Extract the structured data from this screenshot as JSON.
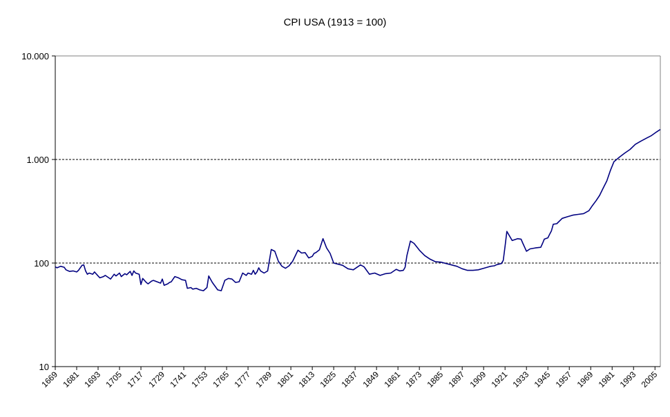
{
  "chart_data": {
    "type": "line",
    "title": "CPI USA (1913 = 100)",
    "xlabel": "",
    "ylabel": "",
    "y_scale": "log10",
    "ylim": [
      10,
      10000
    ],
    "xlim": [
      1669,
      2008
    ],
    "y_ticks": [
      {
        "value": 10,
        "label": "10"
      },
      {
        "value": 100,
        "label": "100"
      },
      {
        "value": 1000,
        "label": "1.000"
      },
      {
        "value": 10000,
        "label": "10.000"
      }
    ],
    "x_ticks": [
      "1669",
      "1681",
      "1693",
      "1705",
      "1717",
      "1729",
      "1741",
      "1753",
      "1765",
      "1777",
      "1789",
      "1801",
      "1813",
      "1825",
      "1837",
      "1849",
      "1861",
      "1873",
      "1885",
      "1897",
      "1909",
      "1921",
      "1933",
      "1945",
      "1957",
      "1969",
      "1981",
      "1993",
      "2005"
    ],
    "gridlines": "horizontal dotted at 100 and 1.000",
    "legend": "none",
    "line_color": "#000080",
    "series": [
      {
        "x": [
          1669,
          1670,
          1672,
          1674,
          1675,
          1677,
          1679,
          1680,
          1681,
          1682,
          1684,
          1685,
          1686,
          1687,
          1688,
          1690,
          1691,
          1693,
          1694,
          1696,
          1697,
          1699,
          1700,
          1702,
          1703,
          1705,
          1706,
          1708,
          1709,
          1711,
          1712,
          1713,
          1714,
          1716,
          1717,
          1718,
          1720,
          1721,
          1723,
          1724,
          1726,
          1728,
          1729,
          1730,
          1732,
          1733,
          1734,
          1736,
          1738,
          1740,
          1742,
          1743,
          1745,
          1746,
          1748,
          1750,
          1752,
          1754,
          1755,
          1757,
          1760,
          1762,
          1764,
          1766,
          1768,
          1770,
          1772,
          1774,
          1776,
          1777,
          1779,
          1780,
          1781,
          1782,
          1783,
          1784,
          1786,
          1788,
          1790,
          1792,
          1794,
          1796,
          1798,
          1800,
          1802,
          1805,
          1807,
          1809,
          1811,
          1813,
          1814,
          1815,
          1817,
          1819,
          1821,
          1823,
          1825,
          1827,
          1830,
          1833,
          1836,
          1840,
          1842,
          1845,
          1848,
          1851,
          1854,
          1857,
          1860,
          1862,
          1864,
          1865,
          1866,
          1868,
          1870,
          1873,
          1876,
          1879,
          1882,
          1885,
          1888,
          1891,
          1894,
          1897,
          1900,
          1903,
          1906,
          1909,
          1912,
          1913,
          1915,
          1916,
          1917,
          1918,
          1919,
          1920,
          1921,
          1922,
          1925,
          1928,
          1930,
          1931,
          1932,
          1933,
          1935,
          1938,
          1941,
          1942,
          1943,
          1945,
          1946,
          1947,
          1948,
          1950,
          1953,
          1956,
          1959,
          1962,
          1965,
          1968,
          1970,
          1972,
          1974,
          1976,
          1978,
          1980,
          1982,
          1985,
          1988,
          1991,
          1994,
          1997,
          2000,
          2003,
          2006,
          2008
        ],
        "values": [
          92,
          90,
          93,
          91,
          86,
          83,
          84,
          83,
          82,
          85,
          95,
          96,
          84,
          78,
          80,
          78,
          82,
          75,
          72,
          74,
          76,
          72,
          70,
          78,
          75,
          80,
          74,
          79,
          77,
          83,
          76,
          84,
          80,
          78,
          62,
          71,
          65,
          63,
          67,
          68,
          66,
          64,
          70,
          61,
          63,
          65,
          66,
          74,
          72,
          69,
          68,
          57,
          58,
          56,
          57,
          55,
          54,
          58,
          75,
          65,
          55,
          54,
          68,
          71,
          70,
          65,
          66,
          80,
          76,
          80,
          78,
          85,
          78,
          82,
          90,
          84,
          80,
          84,
          135,
          130,
          104,
          93,
          89,
          94,
          104,
          133,
          125,
          126,
          112,
          116,
          124,
          126,
          134,
          172,
          140,
          124,
          100,
          98,
          95,
          88,
          86,
          96,
          92,
          78,
          80,
          76,
          79,
          80,
          87,
          84,
          85,
          91,
          118,
          163,
          155,
          133,
          118,
          109,
          103,
          102,
          99,
          96,
          93,
          88,
          85,
          85,
          86,
          89,
          92,
          93,
          94,
          96,
          97,
          98,
          99,
          106,
          145,
          202,
          165,
          172,
          170,
          155,
          142,
          130,
          137,
          140,
          142,
          155,
          170,
          175,
          190,
          205,
          237,
          240,
          270,
          280,
          290,
          295,
          300,
          320,
          360,
          400,
          450,
          530,
          620,
          780,
          950,
          1050,
          1150,
          1250,
          1400,
          1500,
          1600,
          1700,
          1850,
          1950
        ]
      }
    ]
  }
}
